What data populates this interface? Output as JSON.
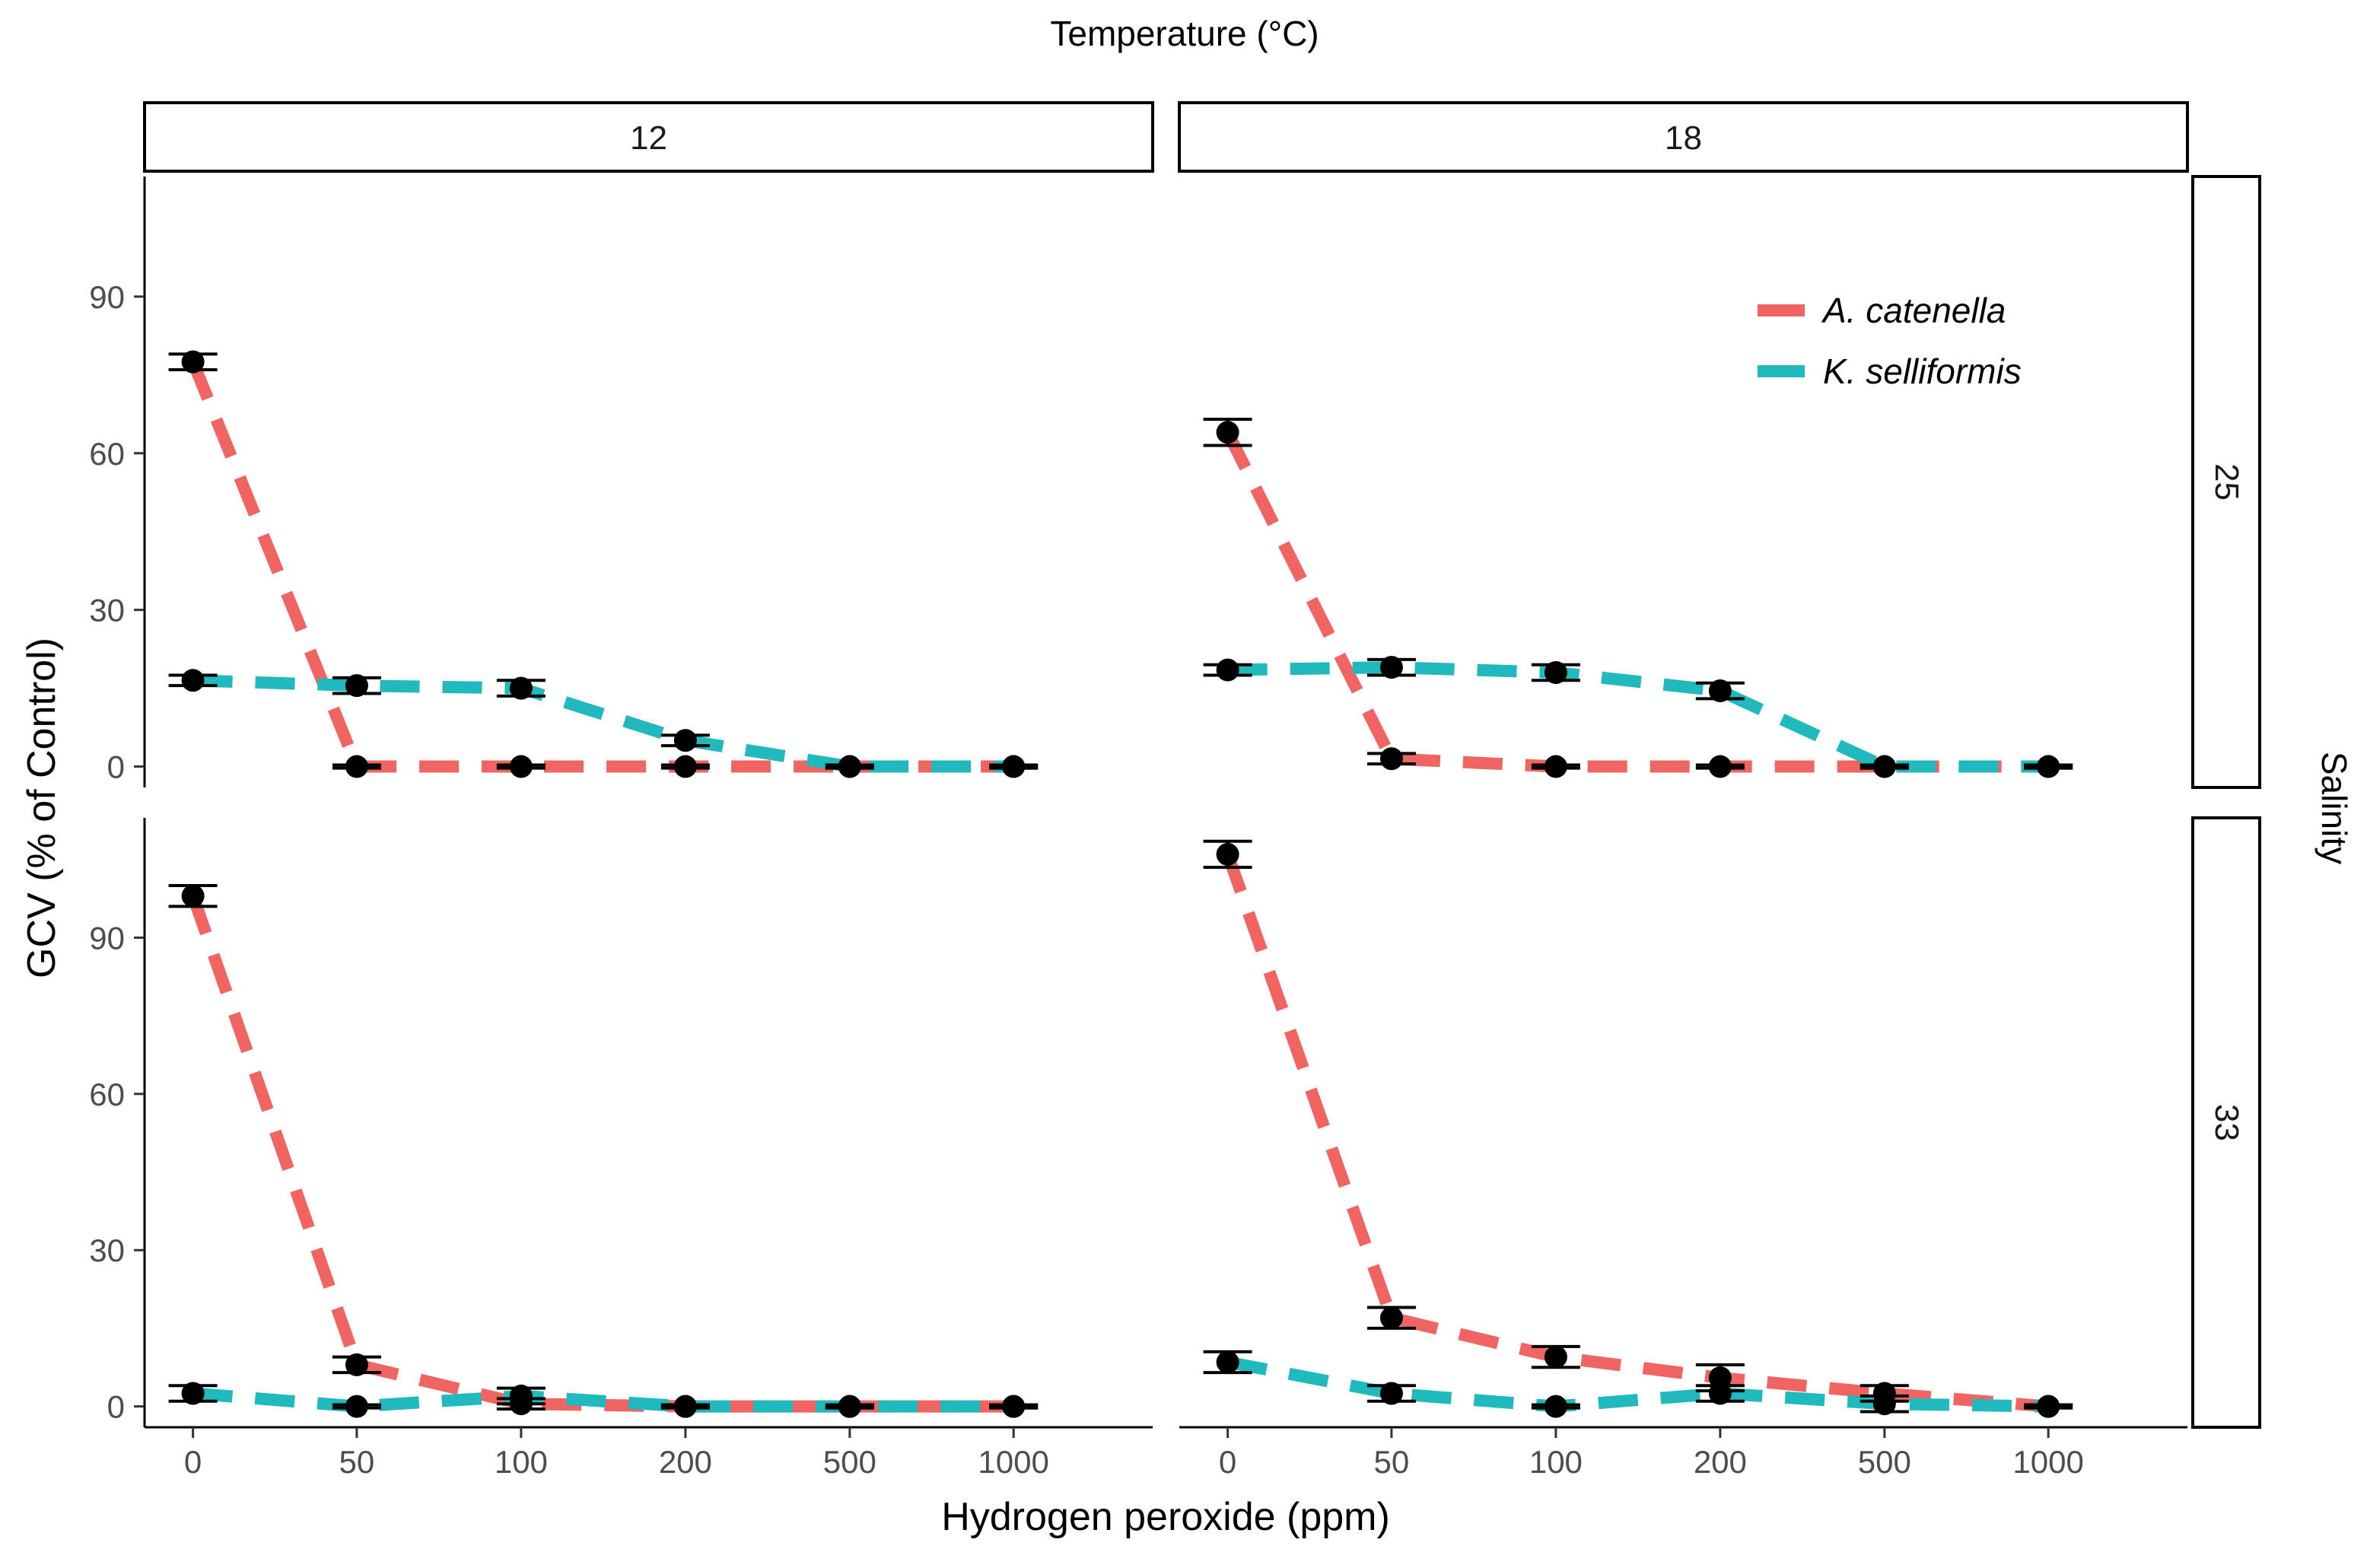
{
  "chart_data": {
    "type": "line",
    "title": "Temperature (°C)",
    "xlabel": "Hydrogen peroxide (ppm)",
    "ylabel": "GCV (% of Control)",
    "row_strip_title": "Salinity",
    "categories": [
      "0",
      "50",
      "100",
      "200",
      "500",
      "1000"
    ],
    "yticks": [
      0,
      30,
      60,
      90
    ],
    "ylim": [
      -4,
      113
    ],
    "columns": [
      "12",
      "18"
    ],
    "rows": [
      "25",
      "33"
    ],
    "legend": {
      "position": "top-right",
      "entries": [
        {
          "name": "A. catenella",
          "color": "#F06461"
        },
        {
          "name": "K. selliformis",
          "color": "#1FB9BE"
        }
      ]
    },
    "panels": [
      {
        "temperature": "12",
        "salinity": "25",
        "series": [
          {
            "name": "A. catenella",
            "values": [
              77.5,
              0,
              0,
              0,
              0,
              0
            ],
            "errors": [
              1.5,
              0.3,
              0.3,
              0.3,
              0.3,
              0.3
            ]
          },
          {
            "name": "K. selliformis",
            "values": [
              16.5,
              15.5,
              15,
              5,
              0,
              0
            ],
            "errors": [
              1,
              1.5,
              1.5,
              1,
              0.3,
              0.3
            ]
          }
        ]
      },
      {
        "temperature": "18",
        "salinity": "25",
        "series": [
          {
            "name": "A. catenella",
            "values": [
              64,
              1.5,
              0,
              0,
              0,
              0
            ],
            "errors": [
              2.5,
              1,
              0.3,
              0.3,
              0.3,
              0.3
            ]
          },
          {
            "name": "K. selliformis",
            "values": [
              18.5,
              19,
              18,
              14.5,
              0,
              0
            ],
            "errors": [
              1,
              1.5,
              1.5,
              1.5,
              0.3,
              0.3
            ]
          }
        ]
      },
      {
        "temperature": "12",
        "salinity": "33",
        "series": [
          {
            "name": "A. catenella",
            "values": [
              98,
              8,
              0.5,
              0,
              0,
              0
            ],
            "errors": [
              2,
              1.5,
              1,
              0.3,
              0.3,
              0.3
            ]
          },
          {
            "name": "K. selliformis",
            "values": [
              2.5,
              0,
              2,
              0,
              0,
              0
            ],
            "errors": [
              1.5,
              0.3,
              1.5,
              0.3,
              0.3,
              0.3
            ]
          }
        ]
      },
      {
        "temperature": "18",
        "salinity": "33",
        "series": [
          {
            "name": "A. catenella",
            "values": [
              106,
              17,
              9.5,
              5.5,
              2.5,
              0
            ],
            "errors": [
              2.5,
              2,
              2,
              2.5,
              1.5,
              0.3
            ]
          },
          {
            "name": "K. selliformis",
            "values": [
              8.5,
              2.5,
              0,
              2.5,
              0.5,
              0
            ],
            "errors": [
              2,
              1.5,
              0.3,
              1.5,
              1.5,
              0.3
            ]
          }
        ]
      }
    ]
  }
}
